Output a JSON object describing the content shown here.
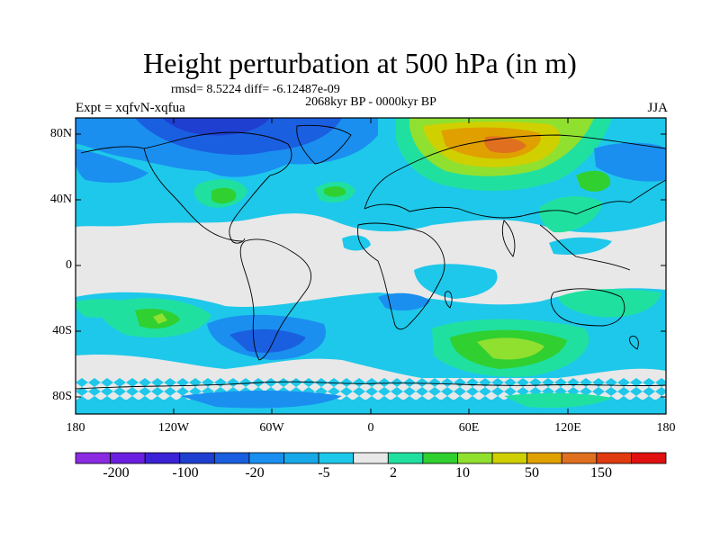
{
  "title": "Height perturbation at 500 hPa (in m)",
  "stats": "rmsd= 8.5224 diff= -6.12487e-09",
  "period": "2068kyr BP - 0000kyr BP",
  "experiment": "Expt = xqfvN-xqfua",
  "season": "JJA",
  "lat_labels": [
    "80N",
    "40N",
    "0",
    "40S",
    "80S"
  ],
  "lon_labels": [
    "180",
    "120W",
    "60W",
    "0",
    "60E",
    "120E",
    "180"
  ],
  "colorbar": {
    "colors": [
      "#8a2be2",
      "#6a1fe0",
      "#3a22d6",
      "#1e3fd0",
      "#1a5fe0",
      "#1a8ff0",
      "#17a8e8",
      "#1ec8ea",
      "#e8e8e8",
      "#20e0a0",
      "#30d030",
      "#90e030",
      "#d0d000",
      "#e0a000",
      "#e07020",
      "#e03a10",
      "#e01010"
    ],
    "labels": [
      "-200",
      "-100",
      "-20",
      "-5",
      "2",
      "10",
      "50",
      "150"
    ]
  }
}
